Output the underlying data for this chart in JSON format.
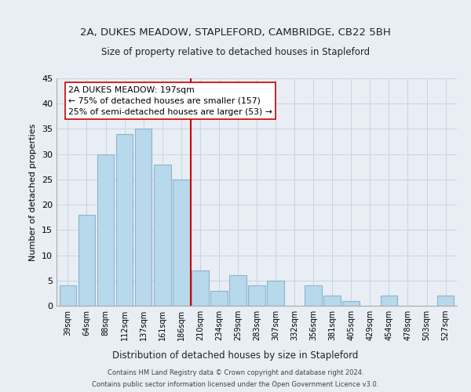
{
  "title1": "2A, DUKES MEADOW, STAPLEFORD, CAMBRIDGE, CB22 5BH",
  "title2": "Size of property relative to detached houses in Stapleford",
  "xlabel": "Distribution of detached houses by size in Stapleford",
  "ylabel": "Number of detached properties",
  "bar_labels": [
    "39sqm",
    "64sqm",
    "88sqm",
    "112sqm",
    "137sqm",
    "161sqm",
    "186sqm",
    "210sqm",
    "234sqm",
    "259sqm",
    "283sqm",
    "307sqm",
    "332sqm",
    "356sqm",
    "381sqm",
    "405sqm",
    "429sqm",
    "454sqm",
    "478sqm",
    "503sqm",
    "527sqm"
  ],
  "bar_values": [
    4,
    18,
    30,
    34,
    35,
    28,
    25,
    7,
    3,
    6,
    4,
    5,
    0,
    4,
    2,
    1,
    0,
    2,
    0,
    0,
    2
  ],
  "bar_color": "#b8d9eb",
  "bar_edge_color": "#8ab4cc",
  "reference_line_color": "#cc0000",
  "annotation_line1": "2A DUKES MEADOW: 197sqm",
  "annotation_line2": "← 75% of detached houses are smaller (157)",
  "annotation_line3": "25% of semi-detached houses are larger (53) →",
  "annotation_box_color": "#ffffff",
  "annotation_box_edge_color": "#cc0000",
  "ylim": [
    0,
    45
  ],
  "yticks": [
    0,
    5,
    10,
    15,
    20,
    25,
    30,
    35,
    40,
    45
  ],
  "footer1": "Contains HM Land Registry data © Crown copyright and database right 2024.",
  "footer2": "Contains public sector information licensed under the Open Government Licence v3.0.",
  "bg_color": "#e8eef4",
  "plot_bg_color": "#e8eef4",
  "grid_color": "#c5d5e5"
}
